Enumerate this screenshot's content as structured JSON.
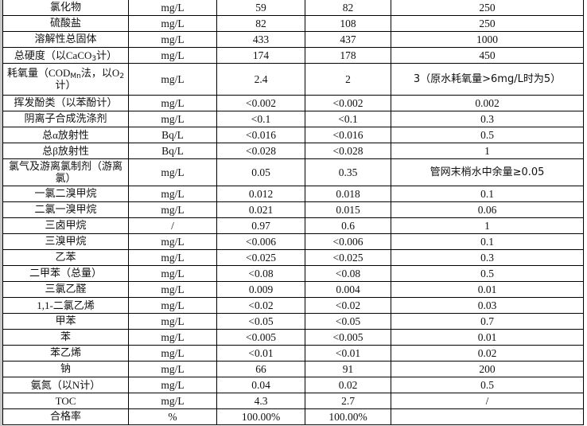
{
  "rows": [
    {
      "name": [
        [
          "氯化物",
          ""
        ]
      ],
      "unit": "mg/L",
      "v1": "59",
      "v2": "82",
      "limit": "250"
    },
    {
      "name": [
        [
          "硫酸盐",
          ""
        ]
      ],
      "unit": "mg/L",
      "v1": "82",
      "v2": "108",
      "limit": "250"
    },
    {
      "name": [
        [
          "溶解性总固体",
          ""
        ]
      ],
      "unit": "mg/L",
      "v1": "433",
      "v2": "437",
      "limit": "1000"
    },
    {
      "name": [
        [
          "总硬度（以",
          ""
        ],
        [
          "CaCO",
          "serif"
        ],
        [
          "3",
          "sub"
        ],
        [
          "计）",
          ""
        ]
      ],
      "unit": "mg/L",
      "v1": "174",
      "v2": "178",
      "limit": "450"
    },
    {
      "name": [
        [
          "耗氧量（",
          ""
        ],
        [
          "COD",
          "serif"
        ],
        [
          "Mn",
          "sub"
        ],
        [
          "法，以",
          ""
        ],
        [
          "O",
          "serif"
        ],
        [
          "2",
          "sub"
        ],
        [
          "计）",
          ""
        ]
      ],
      "unit": "mg/L",
      "v1": "2.4",
      "v2": "2",
      "limit": "3（原水耗氧量>6mg/L时为5）",
      "tall": "tall2",
      "limit_cn": true
    },
    {
      "name": [
        [
          "挥发酚类（以苯酚计）",
          ""
        ]
      ],
      "unit": "mg/L",
      "v1": "<0.002",
      "v2": "<0.002",
      "limit": "0.002"
    },
    {
      "name": [
        [
          "阴离子合成洗涤剂",
          ""
        ]
      ],
      "unit": "mg/L",
      "v1": "<0.1",
      "v2": "<0.1",
      "limit": "0.3"
    },
    {
      "name": [
        [
          "总",
          ""
        ],
        [
          "α",
          "serif"
        ],
        [
          "放射性",
          ""
        ]
      ],
      "unit": "Bq/L",
      "v1": "<0.016",
      "v2": "<0.016",
      "limit": "0.5"
    },
    {
      "name": [
        [
          "总",
          ""
        ],
        [
          "β",
          "serif"
        ],
        [
          "放射性",
          ""
        ]
      ],
      "unit": "Bq/L",
      "v1": "<0.028",
      "v2": "<0.028",
      "limit": "1"
    },
    {
      "name": [
        [
          "氯气及游离氯制剂（游离氯）",
          ""
        ]
      ],
      "unit": "mg/L",
      "v1": "0.05",
      "v2": "0.35",
      "limit": "管网末梢水中余量≥0.05",
      "tall": "tall3",
      "limit_cn": true
    },
    {
      "name": [
        [
          "一氯二溴甲烷",
          ""
        ]
      ],
      "unit": "mg/L",
      "v1": "0.012",
      "v2": "0.018",
      "limit": "0.1"
    },
    {
      "name": [
        [
          "二氯一溴甲烷",
          ""
        ]
      ],
      "unit": "mg/L",
      "v1": "0.021",
      "v2": "0.015",
      "limit": "0.06"
    },
    {
      "name": [
        [
          "三卤甲烷",
          ""
        ]
      ],
      "unit": "/",
      "v1": "0.97",
      "v2": "0.6",
      "limit": "1"
    },
    {
      "name": [
        [
          "三溴甲烷",
          ""
        ]
      ],
      "unit": "mg/L",
      "v1": "<0.006",
      "v2": "<0.006",
      "limit": "0.1"
    },
    {
      "name": [
        [
          "乙苯",
          ""
        ]
      ],
      "unit": "mg/L",
      "v1": "<0.025",
      "v2": "<0.025",
      "limit": "0.3"
    },
    {
      "name": [
        [
          "二甲苯（总量）",
          ""
        ]
      ],
      "unit": "mg/L",
      "v1": "<0.08",
      "v2": "<0.08",
      "limit": "0.5"
    },
    {
      "name": [
        [
          "三氯乙醛",
          ""
        ]
      ],
      "unit": "mg/L",
      "v1": "0.009",
      "v2": "0.004",
      "limit": "0.01"
    },
    {
      "name": [
        [
          "1,1-",
          "serif"
        ],
        [
          "二氯乙烯",
          ""
        ]
      ],
      "unit": "mg/L",
      "v1": "<0.02",
      "v2": "<0.02",
      "limit": "0.03"
    },
    {
      "name": [
        [
          "甲苯",
          ""
        ]
      ],
      "unit": "mg/L",
      "v1": "<0.05",
      "v2": "<0.05",
      "limit": "0.7"
    },
    {
      "name": [
        [
          "苯",
          ""
        ]
      ],
      "unit": "mg/L",
      "v1": "<0.005",
      "v2": "<0.005",
      "limit": "0.01"
    },
    {
      "name": [
        [
          "苯乙烯",
          ""
        ]
      ],
      "unit": "mg/L",
      "v1": "<0.01",
      "v2": "<0.01",
      "limit": "0.02"
    },
    {
      "name": [
        [
          "钠",
          ""
        ]
      ],
      "unit": "mg/L",
      "v1": "66",
      "v2": "91",
      "limit": "200"
    },
    {
      "name": [
        [
          "氨氮（以",
          ""
        ],
        [
          "N",
          "serif"
        ],
        [
          "计）",
          ""
        ]
      ],
      "unit": "mg/L",
      "v1": "0.04",
      "v2": "0.02",
      "limit": "0.5"
    },
    {
      "name": [
        [
          "TOC",
          "serif"
        ]
      ],
      "unit": "mg/L",
      "v1": "4.3",
      "v2": "2.7",
      "limit": "/"
    },
    {
      "name": [
        [
          "合格率",
          ""
        ]
      ],
      "unit": "%",
      "v1": "100.00%",
      "v2": "100.00%",
      "limit": ""
    }
  ]
}
